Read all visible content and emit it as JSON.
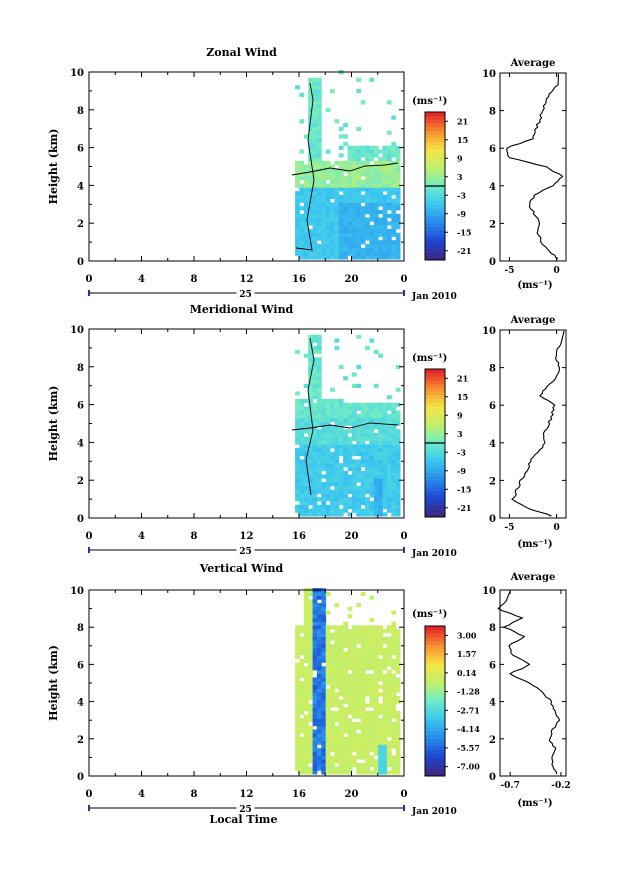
{
  "common": {
    "time_ticks": [
      "0",
      "4",
      "8",
      "12",
      "16",
      "20",
      "0"
    ],
    "day_label": "25",
    "month_label": "Jan 2010",
    "height_ticks": [
      "0",
      "2",
      "4",
      "6",
      "8",
      "10"
    ],
    "ylabel": "Height (km)",
    "unit_label": "(ms⁻¹)",
    "avg_title": "Average",
    "xlabel": "Local Time"
  },
  "chart_data": [
    {
      "type": "heatmap",
      "title": "Zonal Wind",
      "ylabel": "Height (km)",
      "x_range_hours": [
        0,
        24
      ],
      "ylim": [
        0,
        10
      ],
      "colorbar_ticks": [
        "21",
        "15",
        "9",
        "3",
        "-3",
        "-9",
        "-15",
        "-21"
      ],
      "colorbar_range": [
        -24,
        24
      ],
      "profile": {
        "xlim": [
          -6,
          1
        ],
        "xticks": [
          "-5",
          "0"
        ],
        "xlabel": "(ms⁻¹)",
        "heights": [
          0.1,
          0.5,
          1,
          1.5,
          2,
          2.5,
          3,
          3.5,
          4,
          4.5,
          5,
          5.5,
          6,
          6.5,
          7,
          7.5,
          8,
          8.5,
          9,
          9.5
        ],
        "values": [
          0.3,
          -0.8,
          -1.6,
          -2.0,
          -1.8,
          -2.4,
          -2.9,
          -2.3,
          -0.5,
          0.6,
          -1.0,
          -5.0,
          -5.4,
          -2.5,
          -2.2,
          -1.8,
          -1.5,
          -1.2,
          -0.5,
          0.2
        ]
      }
    },
    {
      "type": "heatmap",
      "title": "Meridional Wind",
      "ylabel": "Height (km)",
      "x_range_hours": [
        0,
        24
      ],
      "ylim": [
        0,
        10
      ],
      "colorbar_ticks": [
        "21",
        "15",
        "9",
        "3",
        "-3",
        "-9",
        "-15",
        "-21"
      ],
      "colorbar_range": [
        -24,
        24
      ],
      "profile": {
        "xlim": [
          -6,
          1
        ],
        "xticks": [
          "-5",
          "0"
        ],
        "xlabel": "(ms⁻¹)",
        "heights": [
          0.1,
          0.5,
          1,
          1.5,
          2,
          2.5,
          3,
          3.5,
          4,
          4.5,
          5,
          5.5,
          6,
          6.5,
          7,
          7.5,
          8,
          8.5,
          9,
          9.5
        ],
        "values": [
          -0.4,
          -3.0,
          -4.6,
          -4.2,
          -3.8,
          -3.2,
          -2.8,
          -2.0,
          -1.2,
          -1.5,
          -0.8,
          -0.5,
          -0.2,
          -1.8,
          -1.0,
          0.0,
          0.3,
          0.0,
          0.2,
          0.8
        ]
      }
    },
    {
      "type": "heatmap",
      "title": "Vertical Wind",
      "ylabel": "Height (km)",
      "xlabel": "Local Time",
      "x_range_hours": [
        0,
        24
      ],
      "ylim": [
        0,
        10
      ],
      "colorbar_ticks": [
        "3.00",
        "1.57",
        "0.14",
        "-1.28",
        "-2.71",
        "-4.14",
        "-5.57",
        "-7.00"
      ],
      "colorbar_range": [
        -7.7,
        3.7
      ],
      "profile": {
        "xlim": [
          -0.8,
          -0.15
        ],
        "xticks": [
          "-0.7",
          "-0.2"
        ],
        "xlabel": "(ms⁻¹)",
        "heights": [
          0.1,
          0.5,
          1,
          1.5,
          2,
          2.5,
          3,
          3.5,
          4,
          4.5,
          5,
          5.5,
          6,
          6.5,
          7,
          7.5,
          8,
          8.5,
          9,
          9.5
        ],
        "values": [
          -0.23,
          -0.28,
          -0.3,
          -0.26,
          -0.32,
          -0.28,
          -0.22,
          -0.27,
          -0.3,
          -0.37,
          -0.52,
          -0.7,
          -0.5,
          -0.68,
          -0.72,
          -0.55,
          -0.76,
          -0.58,
          -0.82,
          -0.7
        ]
      }
    }
  ]
}
